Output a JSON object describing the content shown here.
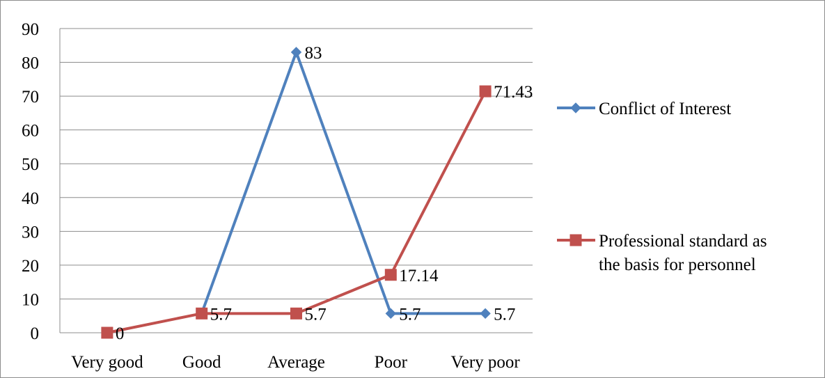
{
  "chart_data": {
    "type": "line",
    "categories": [
      "Very good",
      "Good",
      "Average",
      "Poor",
      "Very poor"
    ],
    "ylim": [
      0,
      90
    ],
    "yticks": [
      0,
      10,
      20,
      30,
      40,
      50,
      60,
      70,
      80,
      90
    ],
    "grid": true,
    "legend_position": "right",
    "series": [
      {
        "name": "Conflict of Interest",
        "color": "#4f81bd",
        "marker": "diamond",
        "values": [
          null,
          5.7,
          83,
          5.7,
          5.7
        ],
        "labels": [
          "",
          "",
          "83",
          "5.7",
          "5.7"
        ]
      },
      {
        "name_lines": [
          "Professional standard as",
          "the basis for personnel"
        ],
        "color": "#c0504d",
        "marker": "square",
        "values": [
          0,
          5.7,
          5.7,
          17.14,
          71.43
        ],
        "labels": [
          "0",
          "5.7",
          "5.7",
          "17.14",
          "71.43"
        ]
      }
    ]
  }
}
